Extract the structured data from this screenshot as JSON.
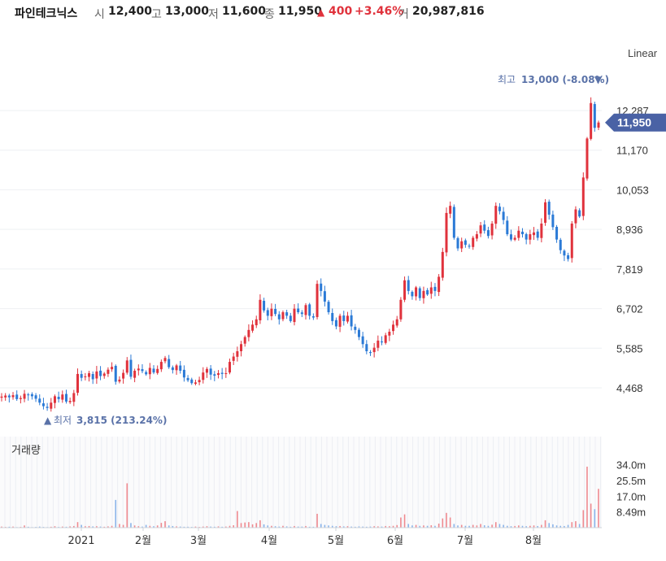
{
  "header": {
    "name": "파인테크닉스",
    "open_label": "시",
    "open": "12,400",
    "high_label": "고",
    "high": "13,000",
    "low_label": "저",
    "low": "11,600",
    "close_label": "종",
    "close": "11,950",
    "change_arrow": "▲",
    "change": "400",
    "change_pct": "+3.46%",
    "volume_label": "거",
    "volume": "20,987,816"
  },
  "scale_mode": "Linear",
  "annotations": {
    "high_label": "최고",
    "high_value": "13,000 (-8.08%)",
    "high_arrow": "▼",
    "low_label": "최저",
    "low_value": "3,815 (213.24%)",
    "low_arrow": "▲"
  },
  "current_price_tag": "11,950",
  "volume_panel_title": "거래량",
  "colors": {
    "up": "#e0323c",
    "down": "#2b7ad6",
    "tag": "#4a62a5",
    "grid": "#eef0f3",
    "annotation": "#5a72a8"
  },
  "chart_data": {
    "type": "candlestick",
    "x_tick_labels": [
      "2021",
      "2월",
      "3월",
      "4월",
      "5월",
      "6월",
      "7월",
      "8월"
    ],
    "y_tick_labels": [
      "12,287",
      "11,170",
      "10,053",
      "8,936",
      "7,819",
      "6,702",
      "5,585",
      "4,468"
    ],
    "y_ticks": [
      12287,
      11170,
      10053,
      8936,
      7819,
      6702,
      5585,
      4468
    ],
    "volume_tick_labels": [
      "34.0m",
      "25.5m",
      "17.0m",
      "8.49m"
    ],
    "volume_ticks_m": [
      34.0,
      25.5,
      17.0,
      8.49
    ],
    "high": 13000,
    "low": 3815,
    "last_close": 11950,
    "close_series": [
      4220,
      4250,
      4200,
      4260,
      4150,
      4180,
      4300,
      4260,
      4230,
      4160,
      4050,
      3950,
      3900,
      4050,
      4230,
      4150,
      4280,
      4080,
      4100,
      4320,
      4860,
      4750,
      4790,
      4880,
      4710,
      4930,
      4800,
      4870,
      4980,
      5060,
      4640,
      4700,
      4890,
      5240,
      4780,
      4950,
      5010,
      4940,
      4850,
      5030,
      4900,
      5000,
      5200,
      5310,
      5050,
      4970,
      5100,
      4950,
      4760,
      4680,
      4600,
      4620,
      4690,
      4900,
      5000,
      4840,
      4810,
      4880,
      4860,
      4880,
      5200,
      5350,
      5500,
      5700,
      5900,
      6100,
      6250,
      6400,
      6950,
      6650,
      6500,
      6700,
      6550,
      6400,
      6600,
      6500,
      6350,
      6700,
      6600,
      6550,
      6800,
      6500,
      6450,
      7400,
      7200,
      6900,
      6600,
      6350,
      6200,
      6500,
      6350,
      6500,
      6200,
      6100,
      5900,
      5700,
      5500,
      5450,
      5600,
      5800,
      5750,
      5950,
      6050,
      6250,
      6400,
      6950,
      7500,
      7200,
      7050,
      7300,
      7000,
      7200,
      7100,
      7300,
      7200,
      7600,
      8300,
      9400,
      9600,
      8700,
      8400,
      8600,
      8500,
      8450,
      8700,
      8800,
      9050,
      8900,
      8750,
      9100,
      9600,
      9450,
      9200,
      8800,
      8650,
      8700,
      8900,
      8800,
      8650,
      8800,
      8850,
      8700,
      9100,
      9700,
      9350,
      9000,
      8650,
      8350,
      8200,
      8100,
      9100,
      9500,
      9300,
      10400,
      11500,
      12500,
      11800,
      11950
    ],
    "volume_samples_m": [
      0.6,
      0.4,
      0.5,
      0.6,
      0.3,
      0.4,
      1.2,
      0.5,
      0.3,
      0.4,
      0.6,
      0.4,
      0.3,
      0.5,
      0.8,
      0.4,
      0.6,
      0.5,
      0.7,
      0.9,
      3.0,
      1.5,
      0.8,
      0.9,
      0.7,
      0.8,
      0.6,
      0.5,
      0.7,
      1.0,
      15.0,
      2.0,
      1.5,
      24.0,
      2.5,
      1.2,
      0.8,
      0.6,
      1.5,
      1.0,
      0.8,
      1.2,
      2.6,
      3.5,
      1.2,
      0.9,
      0.7,
      0.6,
      0.5,
      0.5,
      0.4,
      0.6,
      0.4,
      0.6,
      0.8,
      0.6,
      0.5,
      0.7,
      0.5,
      0.6,
      1.0,
      1.3,
      9.0,
      2.5,
      2.8,
      3.0,
      1.8,
      2.5,
      4.0,
      1.8,
      1.2,
      1.0,
      0.8,
      0.6,
      1.0,
      0.7,
      0.5,
      0.9,
      0.6,
      0.6,
      0.9,
      0.5,
      0.5,
      7.5,
      2.0,
      1.5,
      1.2,
      1.0,
      0.8,
      0.9,
      0.7,
      0.8,
      0.6,
      0.5,
      0.7,
      0.6,
      0.5,
      0.6,
      0.8,
      0.7,
      0.6,
      0.9,
      0.8,
      1.0,
      1.4,
      5.5,
      7.2,
      2.0,
      1.2,
      1.5,
      1.0,
      1.2,
      1.0,
      1.3,
      1.0,
      2.2,
      5.0,
      8.0,
      5.5,
      2.0,
      1.2,
      1.5,
      1.0,
      1.0,
      1.5,
      1.2,
      2.0,
      1.3,
      1.0,
      1.6,
      3.0,
      2.0,
      1.5,
      1.0,
      0.8,
      0.9,
      1.2,
      1.0,
      0.8,
      1.0,
      1.2,
      0.9,
      1.5,
      4.0,
      2.5,
      1.8,
      1.2,
      1.0,
      0.9,
      1.5,
      3.0,
      3.5,
      2.0,
      9.5,
      33.0,
      13.0,
      10.0,
      21.0
    ]
  }
}
